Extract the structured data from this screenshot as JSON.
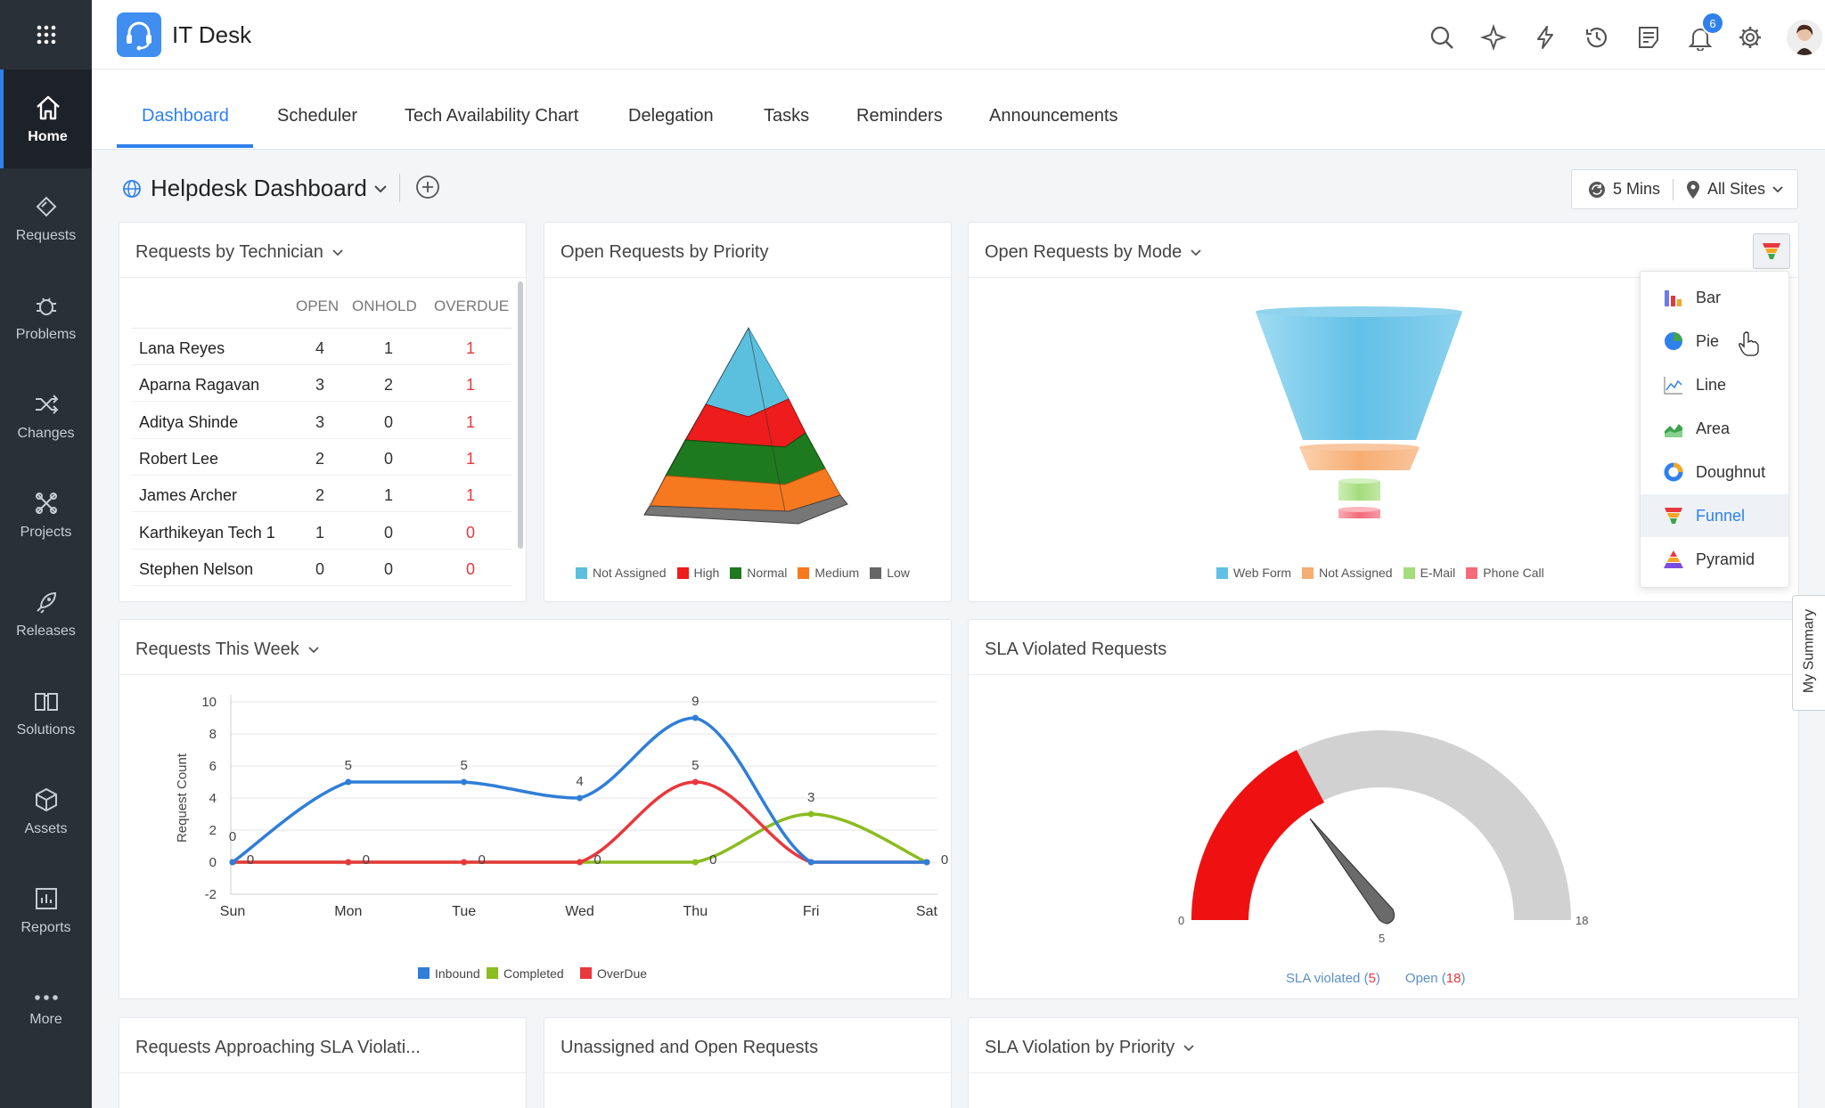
{
  "app": {
    "title": "IT Desk",
    "notification_count": "6"
  },
  "sidebar": {
    "items": [
      {
        "label": "Home"
      },
      {
        "label": "Requests"
      },
      {
        "label": "Problems"
      },
      {
        "label": "Changes"
      },
      {
        "label": "Projects"
      },
      {
        "label": "Releases"
      },
      {
        "label": "Solutions"
      },
      {
        "label": "Assets"
      },
      {
        "label": "Reports"
      },
      {
        "label": "More"
      }
    ]
  },
  "tabs": [
    {
      "label": "Dashboard"
    },
    {
      "label": "Scheduler"
    },
    {
      "label": "Tech Availability Chart"
    },
    {
      "label": "Delegation"
    },
    {
      "label": "Tasks"
    },
    {
      "label": "Reminders"
    },
    {
      "label": "Announcements"
    }
  ],
  "dashboard": {
    "title": "Helpdesk Dashboard",
    "refresh": "5 Mins",
    "sites": "All Sites"
  },
  "tech_card": {
    "title": "Requests by Technician",
    "headers": [
      "OPEN",
      "ONHOLD",
      "OVERDUE"
    ],
    "rows": [
      {
        "name": "Lana Reyes",
        "open": "4",
        "onhold": "1",
        "overdue": "1"
      },
      {
        "name": "Aparna Ragavan",
        "open": "3",
        "onhold": "2",
        "overdue": "1"
      },
      {
        "name": "Aditya Shinde",
        "open": "3",
        "onhold": "0",
        "overdue": "1"
      },
      {
        "name": "Robert Lee",
        "open": "2",
        "onhold": "0",
        "overdue": "1"
      },
      {
        "name": "James Archer",
        "open": "2",
        "onhold": "1",
        "overdue": "1"
      },
      {
        "name": "Karthikeyan Tech 1",
        "open": "1",
        "onhold": "0",
        "overdue": "0"
      },
      {
        "name": "Stephen Nelson",
        "open": "0",
        "onhold": "0",
        "overdue": "0"
      }
    ]
  },
  "priority_card": {
    "title": "Open Requests by Priority",
    "legend": [
      {
        "label": "Not Assigned",
        "color": "#5bc0de"
      },
      {
        "label": "High",
        "color": "#ee1c1c"
      },
      {
        "label": "Normal",
        "color": "#1e7a1e"
      },
      {
        "label": "Medium",
        "color": "#f7791f"
      },
      {
        "label": "Low",
        "color": "#666666"
      }
    ]
  },
  "mode_card": {
    "title": "Open Requests by Mode",
    "legend": [
      {
        "label": "Web Form",
        "color": "#62c0e6"
      },
      {
        "label": "Not Assigned",
        "color": "#f6ad72"
      },
      {
        "label": "E-Mail",
        "color": "#a5dc7c"
      },
      {
        "label": "Phone Call",
        "color": "#f36b7a"
      }
    ]
  },
  "chart_menu": {
    "items": [
      {
        "label": "Bar",
        "icon": "bar-chart-icon"
      },
      {
        "label": "Pie",
        "icon": "pie-chart-icon"
      },
      {
        "label": "Line",
        "icon": "line-chart-icon"
      },
      {
        "label": "Area",
        "icon": "area-chart-icon"
      },
      {
        "label": "Doughnut",
        "icon": "doughnut-chart-icon"
      },
      {
        "label": "Funnel",
        "icon": "funnel-chart-icon"
      },
      {
        "label": "Pyramid",
        "icon": "pyramid-chart-icon"
      }
    ],
    "selected": "Funnel"
  },
  "week_card": {
    "title": "Requests This Week"
  },
  "sla_card": {
    "title": "SLA Violated Requests",
    "min": "0",
    "max": "18",
    "value_label": "5",
    "legend_violated": "SLA violated",
    "violated_count": "5",
    "legend_open": "Open",
    "open_count": "18"
  },
  "bottom_cards": [
    {
      "title": "Requests Approaching SLA Violati..."
    },
    {
      "title": "Unassigned and Open Requests"
    },
    {
      "title": "SLA Violation by Priority"
    }
  ],
  "side_tab": {
    "label": "My Summary"
  },
  "chart_data": {
    "type": "line",
    "categories": [
      "Sun",
      "Mon",
      "Tue",
      "Wed",
      "Thu",
      "Fri",
      "Sat"
    ],
    "series": [
      {
        "name": "Inbound",
        "color": "#2f7ed8",
        "values": [
          0,
          5,
          5,
          4,
          9,
          0,
          0
        ]
      },
      {
        "name": "Completed",
        "color": "#8bbc21",
        "values": [
          0,
          0,
          0,
          0,
          0,
          3,
          0
        ]
      },
      {
        "name": "OverDue",
        "color": "#e8383d",
        "values": [
          0,
          0,
          0,
          0,
          5,
          0,
          0
        ]
      }
    ],
    "ylabel": "Request Count",
    "ylim": [
      -2,
      10
    ],
    "yticks": [
      -2,
      0,
      2,
      4,
      6,
      8,
      10
    ],
    "grid": true,
    "legend": "bottom"
  }
}
